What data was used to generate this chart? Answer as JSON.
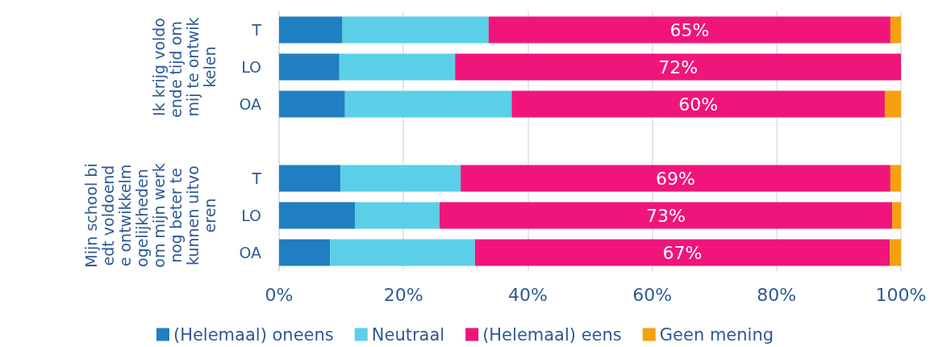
{
  "chart_data": {
    "type": "bar",
    "orientation": "horizontal",
    "stacked": true,
    "categories": [
      "T",
      "LO",
      "OA",
      null,
      "T",
      "LO",
      "OA"
    ],
    "series": [
      {
        "name": "(Helemaal) oneens",
        "color": "#1f7fc0",
        "values": [
          10.2,
          9.7,
          10.6,
          null,
          9.9,
          12.2,
          8.2
        ]
      },
      {
        "name": "Neutraal",
        "color": "#5bcfe8",
        "values": [
          23.5,
          18.6,
          26.8,
          null,
          19.3,
          13.6,
          23.3
        ]
      },
      {
        "name": "(Helemaal) eens",
        "color": "#f0157a",
        "values": [
          64.6,
          71.7,
          60.0,
          null,
          69.1,
          72.8,
          66.7
        ],
        "value_labels": [
          "65%",
          "72%",
          "60%",
          null,
          "69%",
          "73%",
          "67%"
        ]
      },
      {
        "name": "Geen mening",
        "color": "#f5a00e",
        "values": [
          1.7,
          0,
          2.6,
          null,
          1.7,
          1.4,
          1.8
        ]
      }
    ],
    "xlim": [
      0,
      100
    ],
    "xticks": [
      {
        "value": 0,
        "label": "0%"
      },
      {
        "value": 20,
        "label": "20%"
      },
      {
        "value": 40,
        "label": "40%"
      },
      {
        "value": 60,
        "label": "60%"
      },
      {
        "value": 80,
        "label": "80%"
      },
      {
        "value": 100,
        "label": "100%"
      }
    ],
    "grid": "x",
    "legend": "bottom",
    "annotations": [
      "Ik krijg voldoende tijd om mij te ontwikkelen",
      "Mijn school biedt voldoende ontwikkelmogelijkheden om mijn werk nog beter te kunnen uitvoeren"
    ]
  }
}
